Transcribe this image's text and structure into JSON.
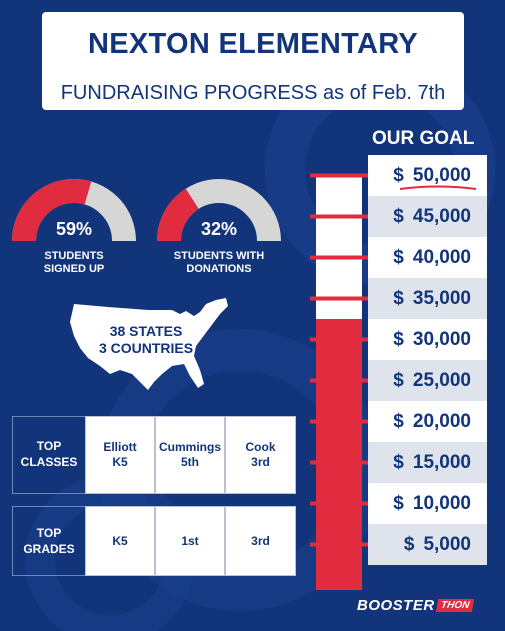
{
  "header": {
    "title": "NEXTON ELEMENTARY",
    "subtitle": "FUNDRAISING PROGRESS as of Feb. 7th"
  },
  "goal": {
    "heading": "OUR GOAL",
    "currency_symbol": "$",
    "levels": [
      "50,000",
      "45,000",
      "40,000",
      "35,000",
      "30,000",
      "25,000",
      "20,000",
      "15,000",
      "10,000",
      "5,000"
    ],
    "raised_level_fraction": 0.6
  },
  "gauges": [
    {
      "value": "59%",
      "label_line1": "STUDENTS",
      "label_line2": "SIGNED UP",
      "fraction": 0.59
    },
    {
      "value": "32%",
      "label_line1": "STUDENTS WITH",
      "label_line2": "DONATIONS",
      "fraction": 0.32
    }
  ],
  "map": {
    "line1": "38 STATES",
    "line2": "3 COUNTRIES"
  },
  "top_classes": {
    "label_line1": "TOP",
    "label_line2": "CLASSES",
    "entries": [
      {
        "name": "Elliott",
        "grade": "K5"
      },
      {
        "name": "Cummings",
        "grade": "5th"
      },
      {
        "name": "Cook",
        "grade": "3rd"
      }
    ]
  },
  "top_grades": {
    "label_line1": "TOP",
    "label_line2": "GRADES",
    "entries": [
      "K5",
      "1st",
      "3rd"
    ]
  },
  "brand": {
    "part1": "BOOSTER",
    "part2": "THON"
  },
  "colors": {
    "background": "#12347a",
    "accent_red": "#e12b3f",
    "gauge_grey": "#d6d6d6"
  }
}
